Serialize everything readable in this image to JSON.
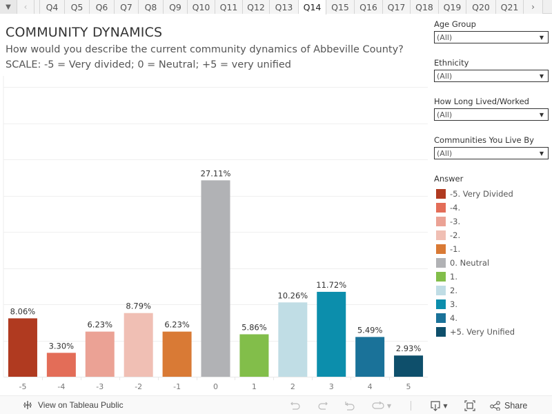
{
  "tabbar": {
    "menu_icon": "caret-down-icon",
    "prev_icon": "chevron-left-icon",
    "next_icon": "chevron-right-icon",
    "tabs": [
      {
        "label": "Q4",
        "active": false
      },
      {
        "label": "Q5",
        "active": false
      },
      {
        "label": "Q6",
        "active": false
      },
      {
        "label": "Q7",
        "active": false
      },
      {
        "label": "Q8",
        "active": false
      },
      {
        "label": "Q9",
        "active": false
      },
      {
        "label": "Q10",
        "active": false
      },
      {
        "label": "Q11",
        "active": false
      },
      {
        "label": "Q12",
        "active": false
      },
      {
        "label": "Q13",
        "active": false
      },
      {
        "label": "Q14",
        "active": true
      },
      {
        "label": "Q15",
        "active": false
      },
      {
        "label": "Q16",
        "active": false
      },
      {
        "label": "Q17",
        "active": false
      },
      {
        "label": "Q18",
        "active": false
      },
      {
        "label": "Q19",
        "active": false
      },
      {
        "label": "Q20",
        "active": false
      },
      {
        "label": "Q21",
        "active": false
      }
    ]
  },
  "header": {
    "title": "COMMUNITY DYNAMICS",
    "subtitle": "How would you describe the current community dynamics of Abbeville County?",
    "scale": "SCALE: -5 = Very divided; 0 = Neutral; +5 = very unified"
  },
  "filters": [
    {
      "label": "Age Group",
      "value": "(All)"
    },
    {
      "label": "Ethnicity",
      "value": "(All)"
    },
    {
      "label": "How Long Lived/Worked",
      "value": "(All)"
    },
    {
      "label": "Communities You Live By",
      "value": "(All)"
    }
  ],
  "legend": {
    "title": "Answer",
    "items": [
      {
        "label": "-5. Very Divided",
        "color": "#b03a20"
      },
      {
        "label": "-4.",
        "color": "#e36d58"
      },
      {
        "label": "-3.",
        "color": "#eba295"
      },
      {
        "label": "-2.",
        "color": "#f0bfb4"
      },
      {
        "label": "-1.",
        "color": "#d97a35"
      },
      {
        "label": "0. Neutral",
        "color": "#b1b2b5"
      },
      {
        "label": "1.",
        "color": "#82be4a"
      },
      {
        "label": "2.",
        "color": "#c0dde5"
      },
      {
        "label": "3.",
        "color": "#0c8eac"
      },
      {
        "label": "4.",
        "color": "#1a7299"
      },
      {
        "label": "+5. Very Unified",
        "color": "#0e4f6b"
      }
    ]
  },
  "chart_data": {
    "type": "bar",
    "title": "COMMUNITY DYNAMICS",
    "xlabel": "",
    "ylabel": "",
    "categories": [
      "-5",
      "-4",
      "-3",
      "-2",
      "-1",
      "0",
      "1",
      "2",
      "3",
      "4",
      "5"
    ],
    "values": [
      8.06,
      3.3,
      6.23,
      8.79,
      6.23,
      27.11,
      5.86,
      10.26,
      11.72,
      5.49,
      2.93
    ],
    "value_labels": [
      "8.06%",
      "3.30%",
      "6.23%",
      "8.79%",
      "6.23%",
      "27.11%",
      "5.86%",
      "10.26%",
      "11.72%",
      "5.49%",
      "2.93%"
    ],
    "colors": [
      "#b03a20",
      "#e36d58",
      "#eba295",
      "#f0bfb4",
      "#d97a35",
      "#b1b2b5",
      "#82be4a",
      "#c0dde5",
      "#0c8eac",
      "#1a7299",
      "#0e4f6b"
    ],
    "ylim": [
      0,
      40
    ],
    "y_gridline_step": 5,
    "y_tick_labels_visible": false,
    "grid": true,
    "legend": "right"
  },
  "footer": {
    "view_label": "View on Tableau Public",
    "share_label": "Share",
    "icons": [
      "undo-icon",
      "redo-icon",
      "revert-icon",
      "refresh-icon",
      "download-icon",
      "fullscreen-icon",
      "share-icon"
    ]
  }
}
